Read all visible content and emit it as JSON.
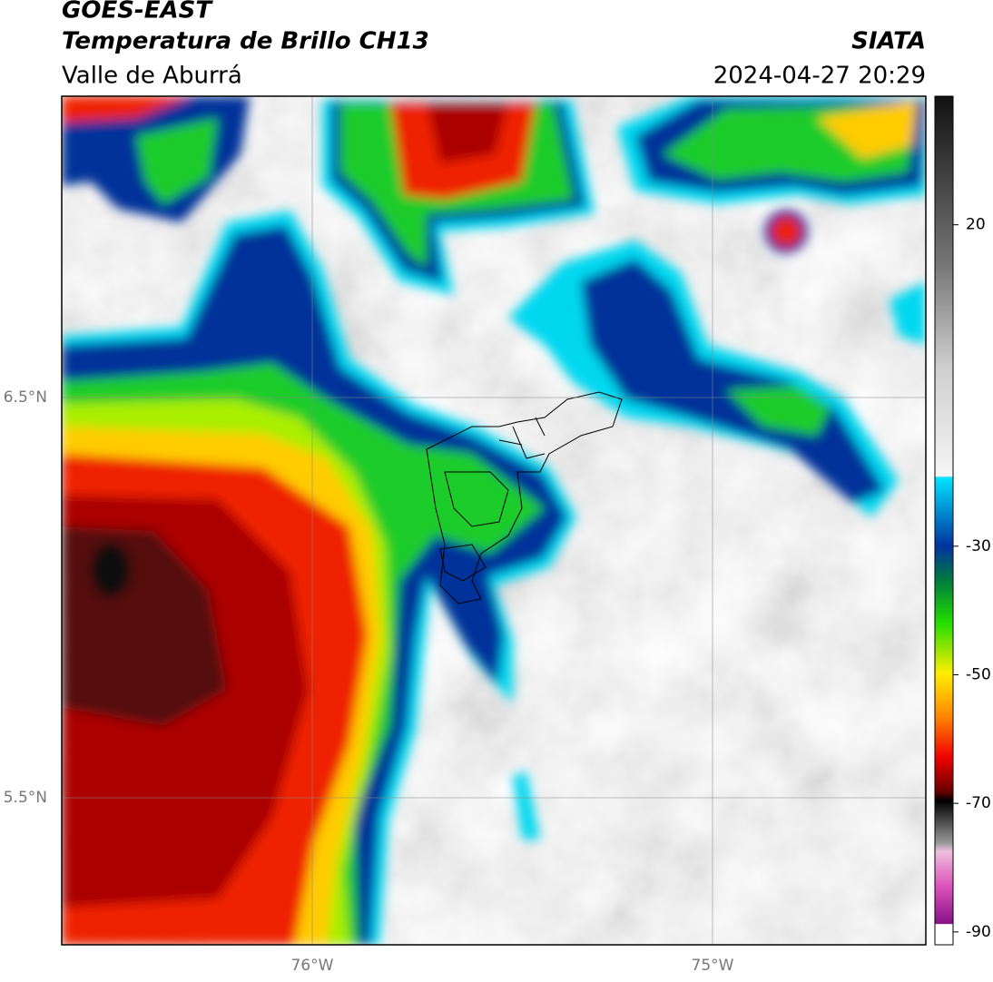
{
  "header": {
    "title": "GOES-EAST",
    "subtitle": "Temperatura de Brillo CH13",
    "region": "Valle de Aburrá",
    "source": "SIATA",
    "timestamp": "2024-04-27 20:29"
  },
  "map": {
    "lat_labels": [
      "6.5°N",
      "5.5°N"
    ],
    "lon_labels": [
      "76°W",
      "75°W"
    ]
  },
  "colorbar": {
    "clim": [
      -92,
      40
    ],
    "ticks": [
      20,
      -30,
      -50,
      -70,
      -90
    ]
  }
}
